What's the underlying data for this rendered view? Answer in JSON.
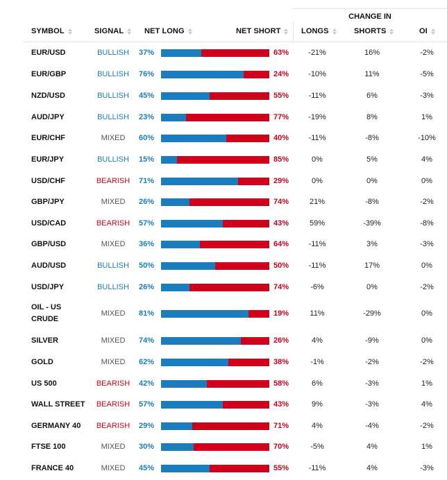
{
  "header": {
    "change_in": "CHANGE IN",
    "symbol": "SYMBOL",
    "signal": "SIGNAL",
    "net_long": "NET LONG",
    "net_short": "NET SHORT",
    "longs": "LONGS",
    "shorts": "SHORTS",
    "oi": "OI"
  },
  "colors": {
    "long": "#1a7dc0",
    "short": "#d0021b",
    "mixed": "#555555"
  },
  "rows": [
    {
      "symbol": "EUR/USD",
      "signal": "BULLISH",
      "net_long": "37%",
      "long_pct": 37,
      "net_short": "63%",
      "longs": "-21%",
      "shorts": "16%",
      "oi": "-2%"
    },
    {
      "symbol": "EUR/GBP",
      "signal": "BULLISH",
      "net_long": "76%",
      "long_pct": 76,
      "net_short": "24%",
      "longs": "-10%",
      "shorts": "11%",
      "oi": "-5%"
    },
    {
      "symbol": "NZD/USD",
      "signal": "BULLISH",
      "net_long": "45%",
      "long_pct": 45,
      "net_short": "55%",
      "longs": "-11%",
      "shorts": "6%",
      "oi": "-3%"
    },
    {
      "symbol": "AUD/JPY",
      "signal": "BULLISH",
      "net_long": "23%",
      "long_pct": 23,
      "net_short": "77%",
      "longs": "-19%",
      "shorts": "8%",
      "oi": "1%"
    },
    {
      "symbol": "EUR/CHF",
      "signal": "MIXED",
      "net_long": "60%",
      "long_pct": 60,
      "net_short": "40%",
      "longs": "-11%",
      "shorts": "-8%",
      "oi": "-10%"
    },
    {
      "symbol": "EUR/JPY",
      "signal": "BULLISH",
      "net_long": "15%",
      "long_pct": 15,
      "net_short": "85%",
      "longs": "0%",
      "shorts": "5%",
      "oi": "4%"
    },
    {
      "symbol": "USD/CHF",
      "signal": "BEARISH",
      "net_long": "71%",
      "long_pct": 71,
      "net_short": "29%",
      "longs": "0%",
      "shorts": "0%",
      "oi": "0%"
    },
    {
      "symbol": "GBP/JPY",
      "signal": "MIXED",
      "net_long": "26%",
      "long_pct": 26,
      "net_short": "74%",
      "longs": "21%",
      "shorts": "-8%",
      "oi": "-2%"
    },
    {
      "symbol": "USD/CAD",
      "signal": "BEARISH",
      "net_long": "57%",
      "long_pct": 57,
      "net_short": "43%",
      "longs": "59%",
      "shorts": "-39%",
      "oi": "-8%"
    },
    {
      "symbol": "GBP/USD",
      "signal": "MIXED",
      "net_long": "36%",
      "long_pct": 36,
      "net_short": "64%",
      "longs": "-11%",
      "shorts": "3%",
      "oi": "-3%"
    },
    {
      "symbol": "AUD/USD",
      "signal": "BULLISH",
      "net_long": "50%",
      "long_pct": 50,
      "net_short": "50%",
      "longs": "-11%",
      "shorts": "17%",
      "oi": "0%"
    },
    {
      "symbol": "USD/JPY",
      "signal": "BULLISH",
      "net_long": "26%",
      "long_pct": 26,
      "net_short": "74%",
      "longs": "-6%",
      "shorts": "0%",
      "oi": "-2%"
    },
    {
      "symbol": "OIL - US CRUDE",
      "signal": "MIXED",
      "net_long": "81%",
      "long_pct": 81,
      "net_short": "19%",
      "longs": "11%",
      "shorts": "-29%",
      "oi": "0%"
    },
    {
      "symbol": "SILVER",
      "signal": "MIXED",
      "net_long": "74%",
      "long_pct": 74,
      "net_short": "26%",
      "longs": "4%",
      "shorts": "-9%",
      "oi": "0%"
    },
    {
      "symbol": "GOLD",
      "signal": "MIXED",
      "net_long": "62%",
      "long_pct": 62,
      "net_short": "38%",
      "longs": "-1%",
      "shorts": "-2%",
      "oi": "-2%"
    },
    {
      "symbol": "US 500",
      "signal": "BEARISH",
      "net_long": "42%",
      "long_pct": 42,
      "net_short": "58%",
      "longs": "6%",
      "shorts": "-3%",
      "oi": "1%"
    },
    {
      "symbol": "WALL STREET",
      "signal": "BEARISH",
      "net_long": "57%",
      "long_pct": 57,
      "net_short": "43%",
      "longs": "9%",
      "shorts": "-3%",
      "oi": "4%"
    },
    {
      "symbol": "GERMANY 40",
      "signal": "BEARISH",
      "net_long": "29%",
      "long_pct": 29,
      "net_short": "71%",
      "longs": "4%",
      "shorts": "-4%",
      "oi": "-2%"
    },
    {
      "symbol": "FTSE 100",
      "signal": "MIXED",
      "net_long": "30%",
      "long_pct": 30,
      "net_short": "70%",
      "longs": "-5%",
      "shorts": "4%",
      "oi": "1%"
    },
    {
      "symbol": "FRANCE 40",
      "signal": "MIXED",
      "net_long": "45%",
      "long_pct": 45,
      "net_short": "55%",
      "longs": "-11%",
      "shorts": "4%",
      "oi": "-3%"
    }
  ]
}
